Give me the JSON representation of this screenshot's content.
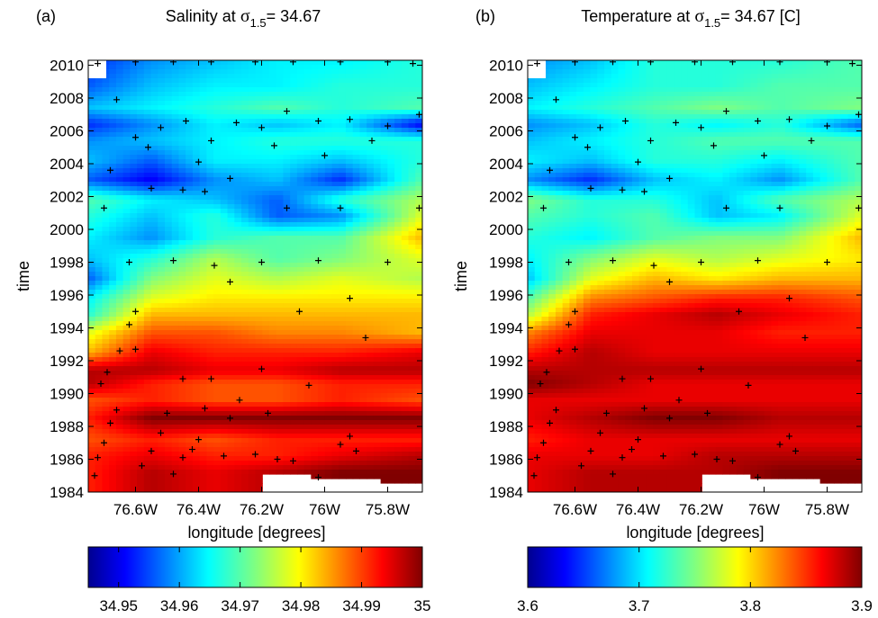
{
  "chart_data": [
    {
      "type": "heatmap",
      "panel_label": "(a)",
      "title_prefix": "Salinity at ",
      "title_symbol": "σ",
      "title_subscript": "1.5",
      "title_suffix": "= 34.67",
      "xlabel": "longitude [degrees]",
      "ylabel": "time",
      "x_tick_labels": [
        "76.6W",
        "76.4W",
        "76.2W",
        "76W",
        "75.8W"
      ],
      "x_ticks": [
        -76.6,
        -76.4,
        -76.2,
        -76.0,
        -75.8
      ],
      "xlim": [
        -76.75,
        -75.69
      ],
      "y_ticks": [
        1984,
        1986,
        1988,
        1990,
        1992,
        1994,
        1996,
        1998,
        2000,
        2002,
        2004,
        2006,
        2008,
        2010
      ],
      "ylim": [
        1984,
        2010.3
      ],
      "colorbar": {
        "min": 34.945,
        "max": 35.0,
        "tick_labels": [
          "34.95",
          "34.96",
          "34.97",
          "34.98",
          "34.99",
          "35"
        ],
        "ticks": [
          34.95,
          34.96,
          34.97,
          34.98,
          34.99,
          35.0
        ]
      },
      "bands": [
        {
          "year": 1985.2,
          "values": [
            0.85,
            0.95,
            0.9,
            0.95,
            1.0,
            1.0
          ]
        },
        {
          "year": 1986.2,
          "values": [
            0.85,
            0.9,
            0.85,
            0.85,
            0.9,
            0.95
          ]
        },
        {
          "year": 1987.2,
          "values": [
            0.8,
            0.85,
            0.8,
            0.85,
            0.85,
            0.85
          ]
        },
        {
          "year": 1988.5,
          "values": [
            0.85,
            1.0,
            1.0,
            1.0,
            1.0,
            1.0
          ]
        },
        {
          "year": 1989.6,
          "values": [
            0.8,
            0.85,
            0.8,
            0.8,
            0.85,
            0.8
          ]
        },
        {
          "year": 1990.6,
          "values": [
            0.95,
            0.85,
            0.8,
            0.8,
            0.85,
            0.85
          ]
        },
        {
          "year": 1991.4,
          "values": [
            0.95,
            0.95,
            0.9,
            0.9,
            0.95,
            0.95
          ]
        },
        {
          "year": 1992.5,
          "values": [
            0.7,
            0.9,
            0.85,
            0.85,
            0.85,
            0.9
          ]
        },
        {
          "year": 1993.7,
          "values": [
            0.6,
            0.8,
            0.8,
            0.75,
            0.75,
            0.7
          ]
        },
        {
          "year": 1994.8,
          "values": [
            0.4,
            0.7,
            0.7,
            0.7,
            0.7,
            0.7
          ]
        },
        {
          "year": 1995.8,
          "values": [
            0.35,
            0.6,
            0.65,
            0.65,
            0.65,
            0.65
          ]
        },
        {
          "year": 1997.0,
          "values": [
            0.2,
            0.5,
            0.6,
            0.55,
            0.6,
            0.55
          ]
        },
        {
          "year": 1998.2,
          "values": [
            0.3,
            0.4,
            0.55,
            0.45,
            0.5,
            0.6
          ]
        },
        {
          "year": 1999.5,
          "values": [
            0.35,
            0.25,
            0.4,
            0.45,
            0.45,
            0.7
          ]
        },
        {
          "year": 2000.8,
          "values": [
            0.4,
            0.3,
            0.4,
            0.2,
            0.25,
            0.6
          ]
        },
        {
          "year": 2001.8,
          "values": [
            0.45,
            0.35,
            0.3,
            0.2,
            0.4,
            0.55
          ]
        },
        {
          "year": 2003.0,
          "values": [
            0.2,
            0.1,
            0.25,
            0.3,
            0.15,
            0.45
          ]
        },
        {
          "year": 2004.2,
          "values": [
            0.3,
            0.2,
            0.35,
            0.35,
            0.3,
            0.4
          ]
        },
        {
          "year": 2005.4,
          "values": [
            0.25,
            0.3,
            0.35,
            0.4,
            0.4,
            0.4
          ]
        },
        {
          "year": 2006.4,
          "values": [
            0.15,
            0.25,
            0.35,
            0.3,
            0.35,
            0.1
          ]
        },
        {
          "year": 2007.4,
          "values": [
            0.3,
            0.35,
            0.4,
            0.45,
            0.4,
            0.45
          ]
        },
        {
          "year": 2008.7,
          "values": [
            0.2,
            0.3,
            0.35,
            0.35,
            0.4,
            0.4
          ]
        },
        {
          "year": 2010.3,
          "values": [
            0.15,
            0.25,
            0.3,
            0.35,
            0.35,
            0.4
          ]
        }
      ],
      "band_lons": [
        -76.75,
        -76.55,
        -76.35,
        -76.15,
        -75.95,
        -75.69
      ]
    },
    {
      "type": "heatmap",
      "panel_label": "(b)",
      "title_prefix": "Temperature at ",
      "title_symbol": "σ",
      "title_subscript": "1.5",
      "title_suffix": "= 34.67 [C]",
      "xlabel": "longitude [degrees]",
      "ylabel": "time",
      "x_tick_labels": [
        "76.6W",
        "76.4W",
        "76.2W",
        "76W",
        "75.8W"
      ],
      "x_ticks": [
        -76.6,
        -76.4,
        -76.2,
        -76.0,
        -75.8
      ],
      "xlim": [
        -76.75,
        -75.69
      ],
      "y_ticks": [
        1984,
        1986,
        1988,
        1990,
        1992,
        1994,
        1996,
        1998,
        2000,
        2002,
        2004,
        2006,
        2008,
        2010
      ],
      "ylim": [
        1984,
        2010.3
      ],
      "colorbar": {
        "min": 3.6,
        "max": 3.9,
        "tick_labels": [
          "3.6",
          "3.7",
          "3.8",
          "3.9"
        ],
        "ticks": [
          3.6,
          3.7,
          3.8,
          3.9
        ]
      },
      "bands": [
        {
          "year": 1985.2,
          "values": [
            0.9,
            0.95,
            0.95,
            0.95,
            1.0,
            1.0
          ]
        },
        {
          "year": 1986.2,
          "values": [
            0.9,
            0.9,
            0.9,
            0.95,
            0.95,
            0.95
          ]
        },
        {
          "year": 1987.2,
          "values": [
            0.85,
            0.9,
            0.9,
            0.9,
            0.9,
            0.9
          ]
        },
        {
          "year": 1988.5,
          "values": [
            0.9,
            0.95,
            1.0,
            1.0,
            0.95,
            0.95
          ]
        },
        {
          "year": 1989.6,
          "values": [
            0.9,
            0.9,
            0.9,
            0.9,
            0.9,
            0.9
          ]
        },
        {
          "year": 1990.6,
          "values": [
            1.0,
            0.95,
            0.9,
            0.9,
            0.9,
            0.9
          ]
        },
        {
          "year": 1991.4,
          "values": [
            0.95,
            0.95,
            0.95,
            0.95,
            0.95,
            0.95
          ]
        },
        {
          "year": 1992.5,
          "values": [
            0.85,
            0.95,
            0.9,
            0.9,
            0.9,
            0.9
          ]
        },
        {
          "year": 1993.7,
          "values": [
            0.75,
            0.9,
            0.9,
            0.9,
            0.85,
            0.85
          ]
        },
        {
          "year": 1994.8,
          "values": [
            0.55,
            0.85,
            0.9,
            0.95,
            0.9,
            0.85
          ]
        },
        {
          "year": 1995.8,
          "values": [
            0.45,
            0.75,
            0.8,
            0.85,
            0.85,
            0.8
          ]
        },
        {
          "year": 1997.0,
          "values": [
            0.3,
            0.6,
            0.7,
            0.65,
            0.7,
            0.7
          ]
        },
        {
          "year": 1998.2,
          "values": [
            0.35,
            0.5,
            0.6,
            0.55,
            0.6,
            0.65
          ]
        },
        {
          "year": 1999.5,
          "values": [
            0.4,
            0.35,
            0.45,
            0.5,
            0.5,
            0.7
          ]
        },
        {
          "year": 2000.8,
          "values": [
            0.45,
            0.4,
            0.45,
            0.3,
            0.35,
            0.6
          ]
        },
        {
          "year": 2001.8,
          "values": [
            0.5,
            0.4,
            0.4,
            0.3,
            0.45,
            0.55
          ]
        },
        {
          "year": 2003.0,
          "values": [
            0.25,
            0.15,
            0.3,
            0.35,
            0.25,
            0.45
          ]
        },
        {
          "year": 2004.2,
          "values": [
            0.35,
            0.3,
            0.4,
            0.4,
            0.35,
            0.45
          ]
        },
        {
          "year": 2005.4,
          "values": [
            0.3,
            0.35,
            0.4,
            0.45,
            0.45,
            0.45
          ]
        },
        {
          "year": 2006.4,
          "values": [
            0.25,
            0.3,
            0.4,
            0.35,
            0.4,
            0.2
          ]
        },
        {
          "year": 2007.4,
          "values": [
            0.35,
            0.4,
            0.45,
            0.5,
            0.45,
            0.5
          ]
        },
        {
          "year": 2008.7,
          "values": [
            0.3,
            0.35,
            0.4,
            0.4,
            0.45,
            0.45
          ]
        },
        {
          "year": 2010.3,
          "values": [
            0.25,
            0.3,
            0.4,
            0.4,
            0.4,
            0.45
          ]
        }
      ],
      "band_lons": [
        -76.75,
        -76.55,
        -76.35,
        -76.15,
        -75.95,
        -75.69
      ]
    }
  ],
  "sample_points": [
    [
      -76.73,
      1985.0
    ],
    [
      -76.72,
      1986.1
    ],
    [
      -76.7,
      1987.0
    ],
    [
      -76.68,
      1988.2
    ],
    [
      -76.66,
      1989.0
    ],
    [
      -76.71,
      1990.6
    ],
    [
      -76.69,
      1991.3
    ],
    [
      -76.65,
      1992.6
    ],
    [
      -76.62,
      1994.2
    ],
    [
      -76.6,
      1995.0
    ],
    [
      -76.58,
      1985.6
    ],
    [
      -76.55,
      1986.5
    ],
    [
      -76.52,
      1987.6
    ],
    [
      -76.5,
      1988.8
    ],
    [
      -76.48,
      1985.1
    ],
    [
      -76.45,
      1986.1
    ],
    [
      -76.42,
      1986.6
    ],
    [
      -76.4,
      1987.2
    ],
    [
      -76.38,
      1989.1
    ],
    [
      -76.36,
      1990.9
    ],
    [
      -76.32,
      1986.2
    ],
    [
      -76.3,
      1988.5
    ],
    [
      -76.27,
      1989.6
    ],
    [
      -76.22,
      1986.3
    ],
    [
      -76.18,
      1988.8
    ],
    [
      -76.15,
      1986.0
    ],
    [
      -76.1,
      1985.9
    ],
    [
      -76.02,
      1984.9
    ],
    [
      -75.95,
      1986.9
    ],
    [
      -75.92,
      1987.4
    ],
    [
      -75.9,
      1986.5
    ],
    [
      -76.6,
      1992.7
    ],
    [
      -76.45,
      1990.9
    ],
    [
      -76.2,
      1991.5
    ],
    [
      -76.05,
      1990.5
    ],
    [
      -75.87,
      1993.4
    ],
    [
      -75.92,
      1995.8
    ],
    [
      -76.08,
      1995.0
    ],
    [
      -76.3,
      1996.8
    ],
    [
      -76.62,
      1998.0
    ],
    [
      -76.48,
      1998.1
    ],
    [
      -76.35,
      1997.8
    ],
    [
      -76.2,
      1998.0
    ],
    [
      -76.02,
      1998.1
    ],
    [
      -75.8,
      1998.0
    ],
    [
      -76.7,
      2001.3
    ],
    [
      -76.55,
      2002.5
    ],
    [
      -76.45,
      2002.4
    ],
    [
      -76.38,
      2002.3
    ],
    [
      -76.3,
      2003.1
    ],
    [
      -76.12,
      2001.3
    ],
    [
      -75.95,
      2001.3
    ],
    [
      -75.7,
      2001.3
    ],
    [
      -76.68,
      2003.6
    ],
    [
      -76.6,
      2005.6
    ],
    [
      -76.52,
      2006.2
    ],
    [
      -76.44,
      2006.6
    ],
    [
      -76.36,
      2005.4
    ],
    [
      -76.28,
      2006.5
    ],
    [
      -76.2,
      2006.2
    ],
    [
      -76.12,
      2007.2
    ],
    [
      -76.02,
      2006.6
    ],
    [
      -75.92,
      2006.7
    ],
    [
      -75.8,
      2006.3
    ],
    [
      -75.7,
      2007.0
    ],
    [
      -76.72,
      2010.1
    ],
    [
      -76.6,
      2010.2
    ],
    [
      -76.48,
      2010.2
    ],
    [
      -76.36,
      2010.2
    ],
    [
      -76.22,
      2010.2
    ],
    [
      -76.1,
      2010.2
    ],
    [
      -75.95,
      2010.2
    ],
    [
      -75.8,
      2010.2
    ],
    [
      -75.72,
      2010.1
    ],
    [
      -76.66,
      2007.9
    ],
    [
      -76.56,
      2005.0
    ],
    [
      -76.4,
      2004.1
    ],
    [
      -76.16,
      2005.1
    ],
    [
      -76.0,
      2004.5
    ],
    [
      -75.85,
      2005.4
    ]
  ]
}
